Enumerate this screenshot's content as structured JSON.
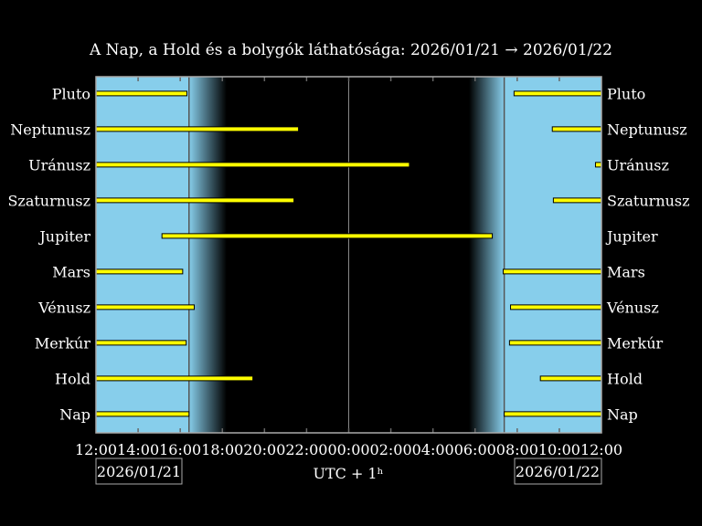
{
  "chart_data": {
    "type": "bar",
    "title": "A Nap, a Hold és a bolygók láthatósága: 2026/01/21 → 2026/01/22",
    "xlabel": "UTC + 1ʰ",
    "xlim": [
      "2026/01/21 12:00",
      "2026/01/22 12:00"
    ],
    "x_tick_labels": [
      "12:00",
      "14:00",
      "16:00",
      "18:00",
      "20:00",
      "22:00",
      "00:00",
      "02:00",
      "04:00",
      "06:00",
      "08:00",
      "10:00",
      "12:00"
    ],
    "date_labels": {
      "start": "2026/01/21",
      "end": "2026/01/22"
    },
    "sunset": "2026/01/21 16:25",
    "twilight_end": "2026/01/21 18:12",
    "twilight_start": "2026/01/22 05:43",
    "sunrise": "2026/01/22 07:23",
    "colors": {
      "day": "#87ceeb",
      "night": "#000000",
      "bar": "#ffff00",
      "bar_outline": "#000000",
      "frame": "#aaaaaa"
    },
    "bodies": [
      {
        "name": "Pluto",
        "segments": [
          [
            "2026/01/21 12:00",
            "2026/01/21 16:19"
          ],
          [
            "2026/01/22 07:51",
            "2026/01/22 12:00"
          ]
        ]
      },
      {
        "name": "Neptunusz",
        "segments": [
          [
            "2026/01/21 12:00",
            "2026/01/21 21:37"
          ],
          [
            "2026/01/22 09:40",
            "2026/01/22 12:00"
          ]
        ]
      },
      {
        "name": "Uránusz",
        "segments": [
          [
            "2026/01/21 12:00",
            "2026/01/22 02:53"
          ],
          [
            "2026/01/22 11:43",
            "2026/01/22 12:00"
          ]
        ]
      },
      {
        "name": "Szaturnusz",
        "segments": [
          [
            "2026/01/21 12:00",
            "2026/01/21 21:24"
          ],
          [
            "2026/01/22 09:43",
            "2026/01/22 12:00"
          ]
        ]
      },
      {
        "name": "Jupiter",
        "segments": [
          [
            "2026/01/21 15:08",
            "2026/01/22 06:49"
          ]
        ]
      },
      {
        "name": "Mars",
        "segments": [
          [
            "2026/01/21 12:00",
            "2026/01/21 16:07"
          ],
          [
            "2026/01/22 07:20",
            "2026/01/22 12:00"
          ]
        ]
      },
      {
        "name": "Vénusz",
        "segments": [
          [
            "2026/01/21 12:00",
            "2026/01/21 16:40"
          ],
          [
            "2026/01/22 07:41",
            "2026/01/22 12:00"
          ]
        ]
      },
      {
        "name": "Merkúr",
        "segments": [
          [
            "2026/01/21 12:00",
            "2026/01/21 16:17"
          ],
          [
            "2026/01/22 07:38",
            "2026/01/22 12:00"
          ]
        ]
      },
      {
        "name": "Hold",
        "segments": [
          [
            "2026/01/21 12:00",
            "2026/01/21 19:27"
          ],
          [
            "2026/01/22 09:06",
            "2026/01/22 12:00"
          ]
        ]
      },
      {
        "name": "Nap",
        "segments": [
          [
            "2026/01/21 12:00",
            "2026/01/21 16:25"
          ],
          [
            "2026/01/22 07:23",
            "2026/01/22 12:00"
          ]
        ]
      }
    ]
  }
}
